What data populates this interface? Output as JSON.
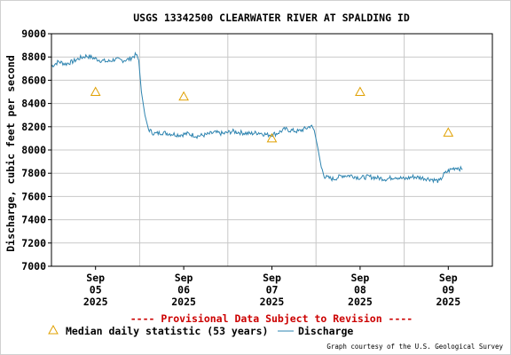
{
  "chart_data": {
    "type": "line",
    "title": "USGS 13342500 CLEARWATER RIVER AT SPALDING ID",
    "ylabel": "Discharge, cubic feet per second",
    "ylim": [
      7000,
      9000
    ],
    "yticks": [
      "7000",
      "7200",
      "7400",
      "7600",
      "7800",
      "8000",
      "8200",
      "8400",
      "8600",
      "8800",
      "9000"
    ],
    "xlim": [
      0,
      5
    ],
    "xticks": [
      {
        "pos": 0.5,
        "lines": [
          "Sep",
          "05",
          "2025"
        ]
      },
      {
        "pos": 1.5,
        "lines": [
          "Sep",
          "06",
          "2025"
        ]
      },
      {
        "pos": 2.5,
        "lines": [
          "Sep",
          "07",
          "2025"
        ]
      },
      {
        "pos": 3.5,
        "lines": [
          "Sep",
          "08",
          "2025"
        ]
      },
      {
        "pos": 4.5,
        "lines": [
          "Sep",
          "09",
          "2025"
        ]
      }
    ],
    "grid": true,
    "provisional_note": "---- Provisional Data Subject to Revision ----",
    "credit": "Graph courtesy of the U.S. Geological Survey",
    "colors": {
      "discharge": "#2e84b0",
      "median": "#e0a000",
      "provisional": "#cc0000",
      "grid": "#c8c8c8"
    },
    "series": [
      {
        "name": "Discharge",
        "x": [
          0.0,
          0.08,
          0.16,
          0.24,
          0.32,
          0.4,
          0.48,
          0.56,
          0.64,
          0.72,
          0.8,
          0.88,
          0.92,
          0.96,
          0.99,
          1.02,
          1.06,
          1.1,
          1.14,
          1.18,
          1.25,
          1.35,
          1.45,
          1.55,
          1.65,
          1.75,
          1.85,
          1.95,
          2.05,
          2.15,
          2.25,
          2.35,
          2.45,
          2.55,
          2.6,
          2.65,
          2.7,
          2.8,
          2.9,
          2.94,
          2.98,
          3.02,
          3.06,
          3.1,
          3.14,
          3.2,
          3.3,
          3.4,
          3.5,
          3.6,
          3.7,
          3.8,
          3.9,
          4.0,
          4.1,
          4.2,
          4.3,
          4.4,
          4.45,
          4.5,
          4.55,
          4.6,
          4.66
        ],
        "values": [
          8720,
          8760,
          8740,
          8760,
          8790,
          8810,
          8790,
          8770,
          8760,
          8780,
          8770,
          8780,
          8800,
          8820,
          8770,
          8500,
          8300,
          8180,
          8150,
          8140,
          8150,
          8140,
          8130,
          8140,
          8120,
          8130,
          8150,
          8140,
          8160,
          8150,
          8140,
          8150,
          8130,
          8140,
          8160,
          8180,
          8170,
          8160,
          8190,
          8210,
          8170,
          8020,
          7850,
          7770,
          7760,
          7750,
          7780,
          7780,
          7760,
          7770,
          7760,
          7750,
          7770,
          7750,
          7770,
          7760,
          7750,
          7730,
          7790,
          7820,
          7840,
          7850,
          7830
        ]
      }
    ],
    "median": {
      "name": "Median daily statistic (53 years)",
      "x": [
        0.5,
        1.5,
        2.5,
        3.5,
        4.5
      ],
      "values": [
        8500,
        8460,
        8100,
        8500,
        8150
      ]
    }
  }
}
